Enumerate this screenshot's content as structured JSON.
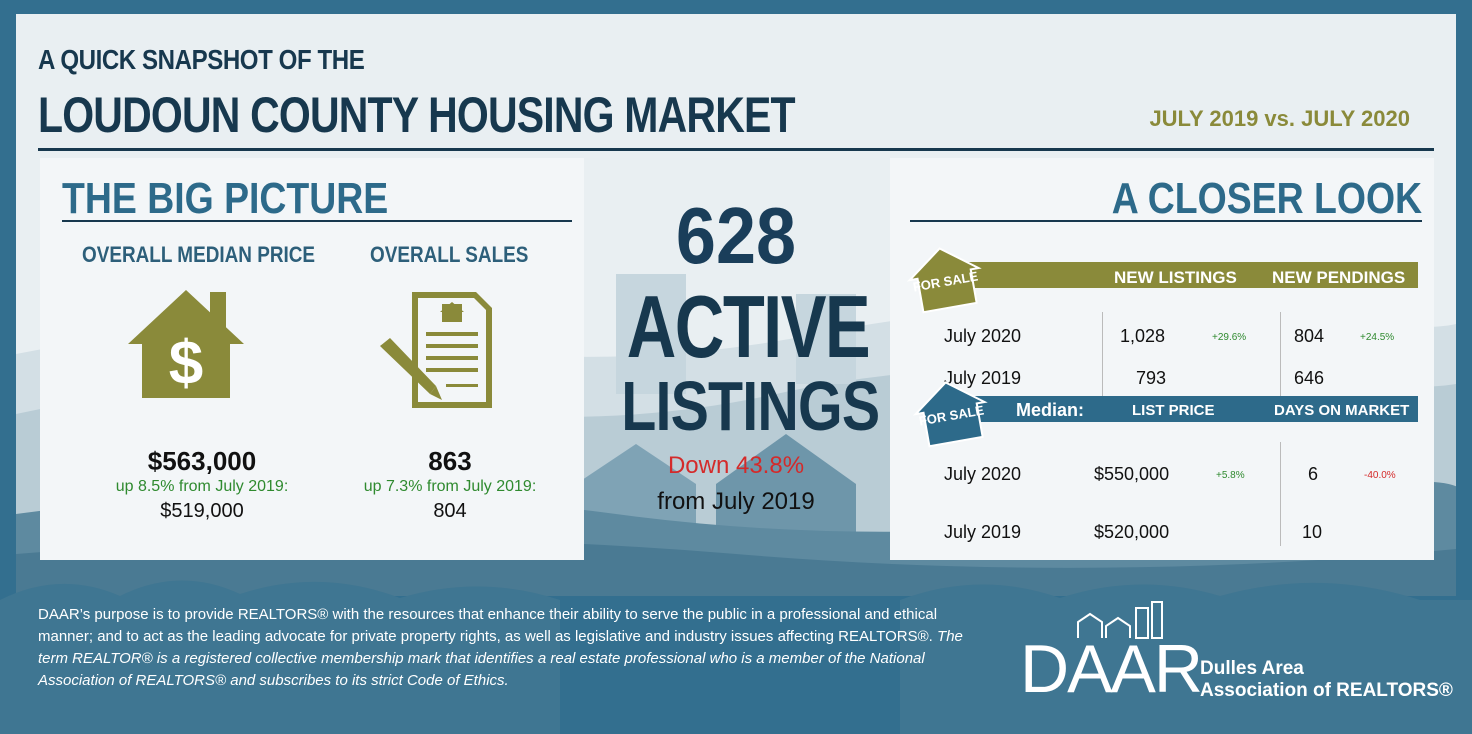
{
  "header": {
    "subtitle": "A QUICK SNAPSHOT OF THE",
    "title": "LOUDOUN COUNTY HOUSING MARKET",
    "date_range": "JULY 2019 vs. JULY 2020"
  },
  "big_picture": {
    "title": "THE BIG PICTURE",
    "median": {
      "heading": "OVERALL MEDIAN PRICE",
      "value": "$563,000",
      "change": "up 8.5% from July 2019:",
      "prior": "$519,000"
    },
    "sales": {
      "heading": "OVERALL SALES",
      "value": "863",
      "change": "up 7.3% from July 2019:",
      "prior": "804"
    }
  },
  "center": {
    "count": "628",
    "line1": "ACTIVE",
    "line2": "LISTINGS",
    "change": "Down 43.8%",
    "from": "from July 2019"
  },
  "closer_look": {
    "title": "A CLOSER LOOK",
    "tag": "FOR SALE",
    "listings": {
      "col1": "NEW LISTINGS",
      "col2": "NEW PENDINGS",
      "rows": [
        {
          "label": "July 2020",
          "v1": "1,028",
          "p1": "+29.6%",
          "v2": "804",
          "p2": "+24.5%"
        },
        {
          "label": "July 2019",
          "v1": "793",
          "p1": "",
          "v2": "646",
          "p2": ""
        }
      ]
    },
    "median": {
      "label": "Median:",
      "col1": "LIST PRICE",
      "col2": "DAYS ON MARKET",
      "rows": [
        {
          "label": "July 2020",
          "v1": "$550,000",
          "p1": "+5.8%",
          "v2": "6",
          "p2": "-40.0%"
        },
        {
          "label": "July 2019",
          "v1": "$520,000",
          "p1": "",
          "v2": "10",
          "p2": ""
        }
      ]
    }
  },
  "footer": {
    "text_plain": "DAAR’s purpose is to provide REALTORS® with the resources that enhance their ability to serve the public in a professional and ethical manner; and to act as the leading advocate for private property rights, as well as legislative and industry issues affecting REALTORS®.",
    "text_italic": "The term REALTOR® is a registered collective membership mark that identifies a real estate professional who is a member of the National Association of REALTORS® and subscribes to its strict Code of Ethics.",
    "logo_mark": "DAAR",
    "logo_line1": "Dulles Area",
    "logo_line2": "Association of REALTORS®"
  },
  "colors": {
    "navy": "#17384e",
    "steel_blue": "#2d6a8a",
    "olive": "#8a8a3a",
    "green": "#2f8a2f",
    "red": "#d42a2a"
  }
}
